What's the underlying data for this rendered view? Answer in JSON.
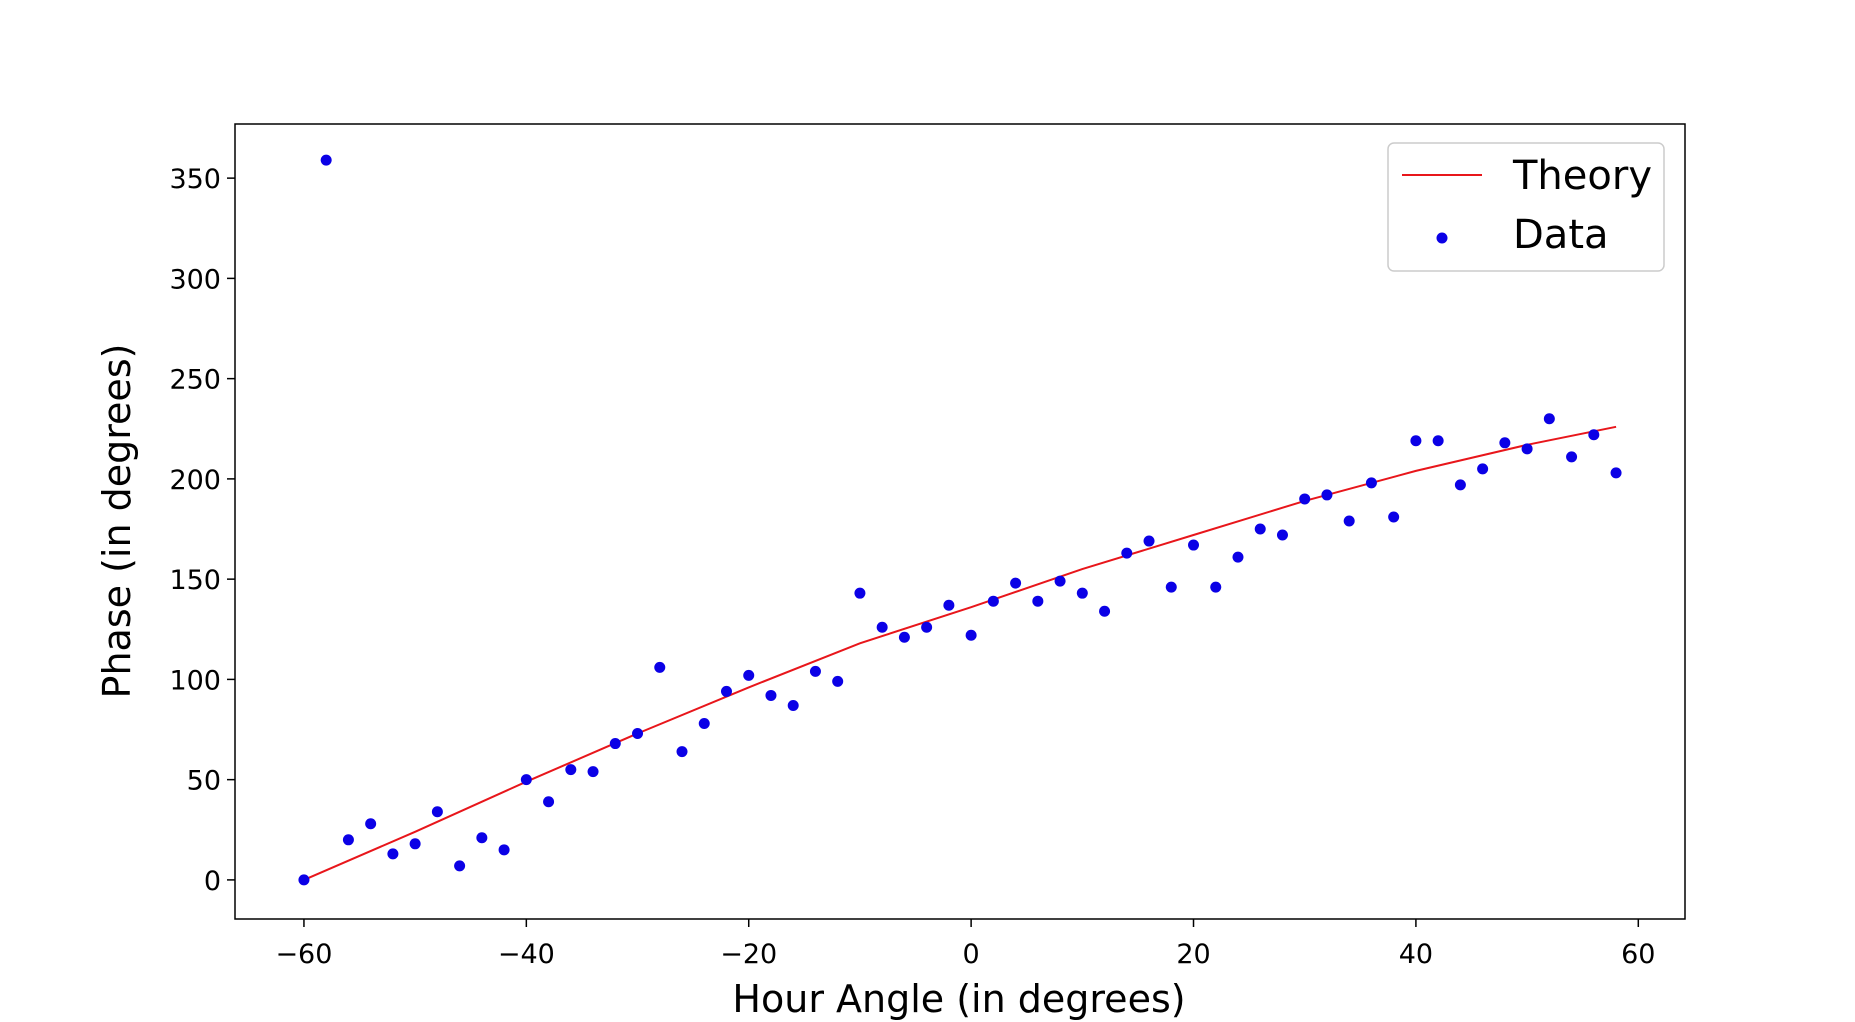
{
  "chart_data": {
    "type": "scatter",
    "xlabel": "Hour Angle (in degrees)",
    "ylabel": "Phase (in degrees)",
    "xlim": [
      -66.2,
      64.2
    ],
    "ylim": [
      -19.5,
      377
    ],
    "xticks": [
      -60,
      -40,
      -20,
      0,
      20,
      40,
      60
    ],
    "yticks": [
      0,
      50,
      100,
      150,
      200,
      250,
      300,
      350
    ],
    "grid": false,
    "legend": {
      "position": "top-right",
      "entries": [
        "Theory",
        "Data"
      ]
    },
    "colors": {
      "theory": "#e8161b",
      "data": "#0b00e6"
    },
    "series": [
      {
        "name": "Theory",
        "kind": "line",
        "x": [
          -60,
          -50,
          -40,
          -30,
          -20,
          -10,
          0,
          10,
          20,
          30,
          40,
          50,
          58
        ],
        "y": [
          0,
          24,
          49,
          73,
          96,
          118,
          136,
          155,
          172,
          189,
          204,
          217,
          226
        ]
      },
      {
        "name": "Data",
        "kind": "scatter",
        "x": [
          -60,
          -58,
          -56,
          -54,
          -52,
          -50,
          -48,
          -46,
          -44,
          -42,
          -40,
          -38,
          -36,
          -34,
          -32,
          -30,
          -28,
          -26,
          -24,
          -22,
          -20,
          -18,
          -16,
          -14,
          -12,
          -10,
          -8,
          -6,
          -4,
          -2,
          0,
          2,
          4,
          6,
          8,
          10,
          12,
          14,
          16,
          18,
          20,
          22,
          24,
          26,
          28,
          30,
          32,
          34,
          36,
          38,
          40,
          42,
          44,
          46,
          48,
          50,
          52,
          54,
          56,
          58
        ],
        "y": [
          0,
          359,
          20,
          28,
          13,
          18,
          34,
          7,
          21,
          15,
          50,
          39,
          55,
          54,
          68,
          73,
          106,
          64,
          78,
          94,
          102,
          92,
          87,
          104,
          99,
          143,
          126,
          121,
          126,
          137,
          122,
          139,
          148,
          139,
          149,
          143,
          134,
          163,
          169,
          146,
          167,
          146,
          161,
          175,
          172,
          190,
          192,
          179,
          198,
          181,
          219,
          219,
          197,
          205,
          218,
          215,
          230,
          211,
          222,
          203
        ]
      }
    ]
  }
}
